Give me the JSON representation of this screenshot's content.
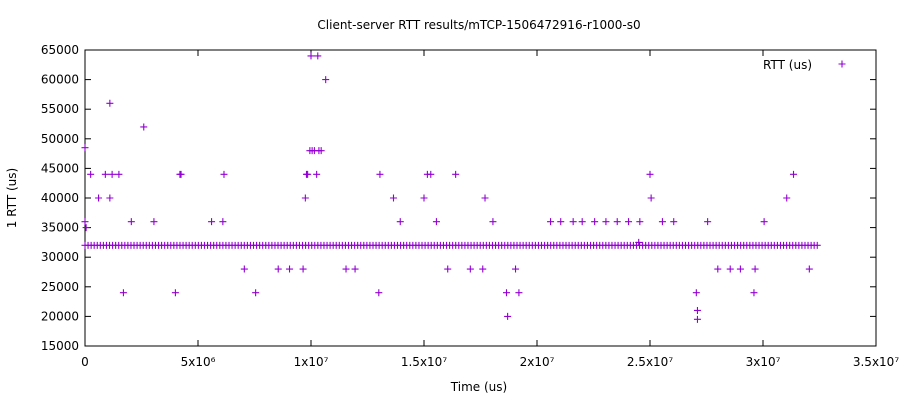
{
  "chart_data": {
    "type": "scatter",
    "title": "Client-server RTT results/mTCP-1506472916-r1000-s0",
    "xlabel": "Time (us)",
    "ylabel": "1 RTT (us)",
    "xlim": [
      0,
      35000000
    ],
    "ylim": [
      15000,
      65000
    ],
    "grid": false,
    "legend_position": "top-right",
    "x_ticks": [
      {
        "value": 0,
        "label": "0"
      },
      {
        "value": 5000000,
        "label": "5x10⁶"
      },
      {
        "value": 10000000,
        "label": "1x10⁷"
      },
      {
        "value": 15000000,
        "label": "1.5x10⁷"
      },
      {
        "value": 20000000,
        "label": "2x10⁷"
      },
      {
        "value": 25000000,
        "label": "2.5x10⁷"
      },
      {
        "value": 30000000,
        "label": "3x10⁷"
      },
      {
        "value": 35000000,
        "label": "3.5x10⁷"
      }
    ],
    "y_ticks": [
      {
        "value": 15000,
        "label": "15000"
      },
      {
        "value": 20000,
        "label": "20000"
      },
      {
        "value": 25000,
        "label": "25000"
      },
      {
        "value": 30000,
        "label": "30000"
      },
      {
        "value": 35000,
        "label": "35000"
      },
      {
        "value": 40000,
        "label": "40000"
      },
      {
        "value": 45000,
        "label": "45000"
      },
      {
        "value": 50000,
        "label": "50000"
      },
      {
        "value": 55000,
        "label": "55000"
      },
      {
        "value": 60000,
        "label": "60000"
      },
      {
        "value": 65000,
        "label": "65000"
      }
    ],
    "series": [
      {
        "name": "RTT (us)",
        "color": "#9400d3",
        "marker": "plus",
        "baseline": {
          "y": 32000,
          "x_start": 0,
          "x_end": 32400000,
          "count": 240
        },
        "points": [
          [
            0,
            48500
          ],
          [
            0,
            36000
          ],
          [
            50000,
            35000
          ],
          [
            250000,
            44000
          ],
          [
            600000,
            40000
          ],
          [
            900000,
            44000
          ],
          [
            1100000,
            40000
          ],
          [
            1100000,
            56000
          ],
          [
            1200000,
            44000
          ],
          [
            1500000,
            44000
          ],
          [
            1700000,
            24000
          ],
          [
            2050000,
            36000
          ],
          [
            2600000,
            52000
          ],
          [
            3050000,
            36000
          ],
          [
            4000000,
            24000
          ],
          [
            4200000,
            44000
          ],
          [
            4250000,
            44000
          ],
          [
            5600000,
            36000
          ],
          [
            6100000,
            36000
          ],
          [
            6150000,
            44000
          ],
          [
            7050000,
            28000
          ],
          [
            7550000,
            24000
          ],
          [
            8550000,
            28000
          ],
          [
            9050000,
            28000
          ],
          [
            9650000,
            28000
          ],
          [
            9750000,
            40000
          ],
          [
            9800000,
            44000
          ],
          [
            9850000,
            44000
          ],
          [
            9950000,
            48000
          ],
          [
            10000000,
            64000
          ],
          [
            10050000,
            48000
          ],
          [
            10150000,
            48000
          ],
          [
            10250000,
            44000
          ],
          [
            10300000,
            64000
          ],
          [
            10350000,
            48000
          ],
          [
            10450000,
            48000
          ],
          [
            10650000,
            60000
          ],
          [
            11550000,
            28000
          ],
          [
            11950000,
            28000
          ],
          [
            13000000,
            24000
          ],
          [
            13050000,
            44000
          ],
          [
            13650000,
            40000
          ],
          [
            13950000,
            36000
          ],
          [
            15000000,
            40000
          ],
          [
            15150000,
            44000
          ],
          [
            15300000,
            44000
          ],
          [
            15550000,
            36000
          ],
          [
            16050000,
            28000
          ],
          [
            16400000,
            44000
          ],
          [
            17050000,
            28000
          ],
          [
            17600000,
            28000
          ],
          [
            17700000,
            40000
          ],
          [
            18050000,
            36000
          ],
          [
            18650000,
            24000
          ],
          [
            18700000,
            20000
          ],
          [
            19050000,
            28000
          ],
          [
            19200000,
            24000
          ],
          [
            20600000,
            36000
          ],
          [
            21050000,
            36000
          ],
          [
            21600000,
            36000
          ],
          [
            22000000,
            36000
          ],
          [
            22550000,
            36000
          ],
          [
            23050000,
            36000
          ],
          [
            23550000,
            36000
          ],
          [
            24050000,
            36000
          ],
          [
            24500000,
            32500
          ],
          [
            24550000,
            36000
          ],
          [
            25000000,
            44000
          ],
          [
            25050000,
            40000
          ],
          [
            25550000,
            36000
          ],
          [
            26050000,
            36000
          ],
          [
            27050000,
            24000
          ],
          [
            27100000,
            21000
          ],
          [
            27100000,
            19500
          ],
          [
            27550000,
            36000
          ],
          [
            28000000,
            28000
          ],
          [
            28550000,
            28000
          ],
          [
            29000000,
            28000
          ],
          [
            29600000,
            24000
          ],
          [
            29650000,
            28000
          ],
          [
            30050000,
            36000
          ],
          [
            31050000,
            40000
          ],
          [
            31350000,
            44000
          ],
          [
            32050000,
            28000
          ]
        ]
      }
    ]
  }
}
